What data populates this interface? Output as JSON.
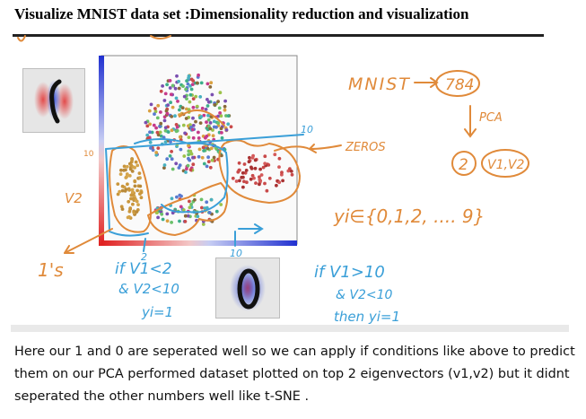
{
  "title": "Visualize MNIST data set :Dimensionality reduction and visualization",
  "caption": "Here our 1 and 0 are seperated well so we can apply if conditions like above to predict them on our PCA performed dataset plotted on top 2 eigenvectors (v1,v2) but it didnt seperated the other numbers well like t-SNE .",
  "annotations": {
    "mnist": "MNIST",
    "dim784": "784",
    "pca": "PCA",
    "two": "2",
    "v1v2": "V1,V2",
    "zeros": "ZEROS",
    "yi_set": "yi∈{0,1,2, .... 9}",
    "v2_axis": "V2",
    "ones": "1's",
    "tick10_top": "10",
    "tick10_bottom": "10",
    "tick2": "2",
    "tick10_left": "10",
    "rule1_line1": "if V1<2",
    "rule1_line2": "& V2<10",
    "rule1_line3": "yi=1",
    "rule2_line1": "if V1>10",
    "rule2_line2": "& V2<10",
    "rule2_line3": "then yi=1"
  },
  "icons": [
    "digit-zero-heatmap-icon",
    "digit-zero-heatmap-icon-bottom"
  ],
  "colors": {
    "ink_orange": "#e08a3a",
    "ink_blue": "#3a9fd8",
    "axis_red": "#e02020",
    "axis_blue": "#2030d0"
  }
}
